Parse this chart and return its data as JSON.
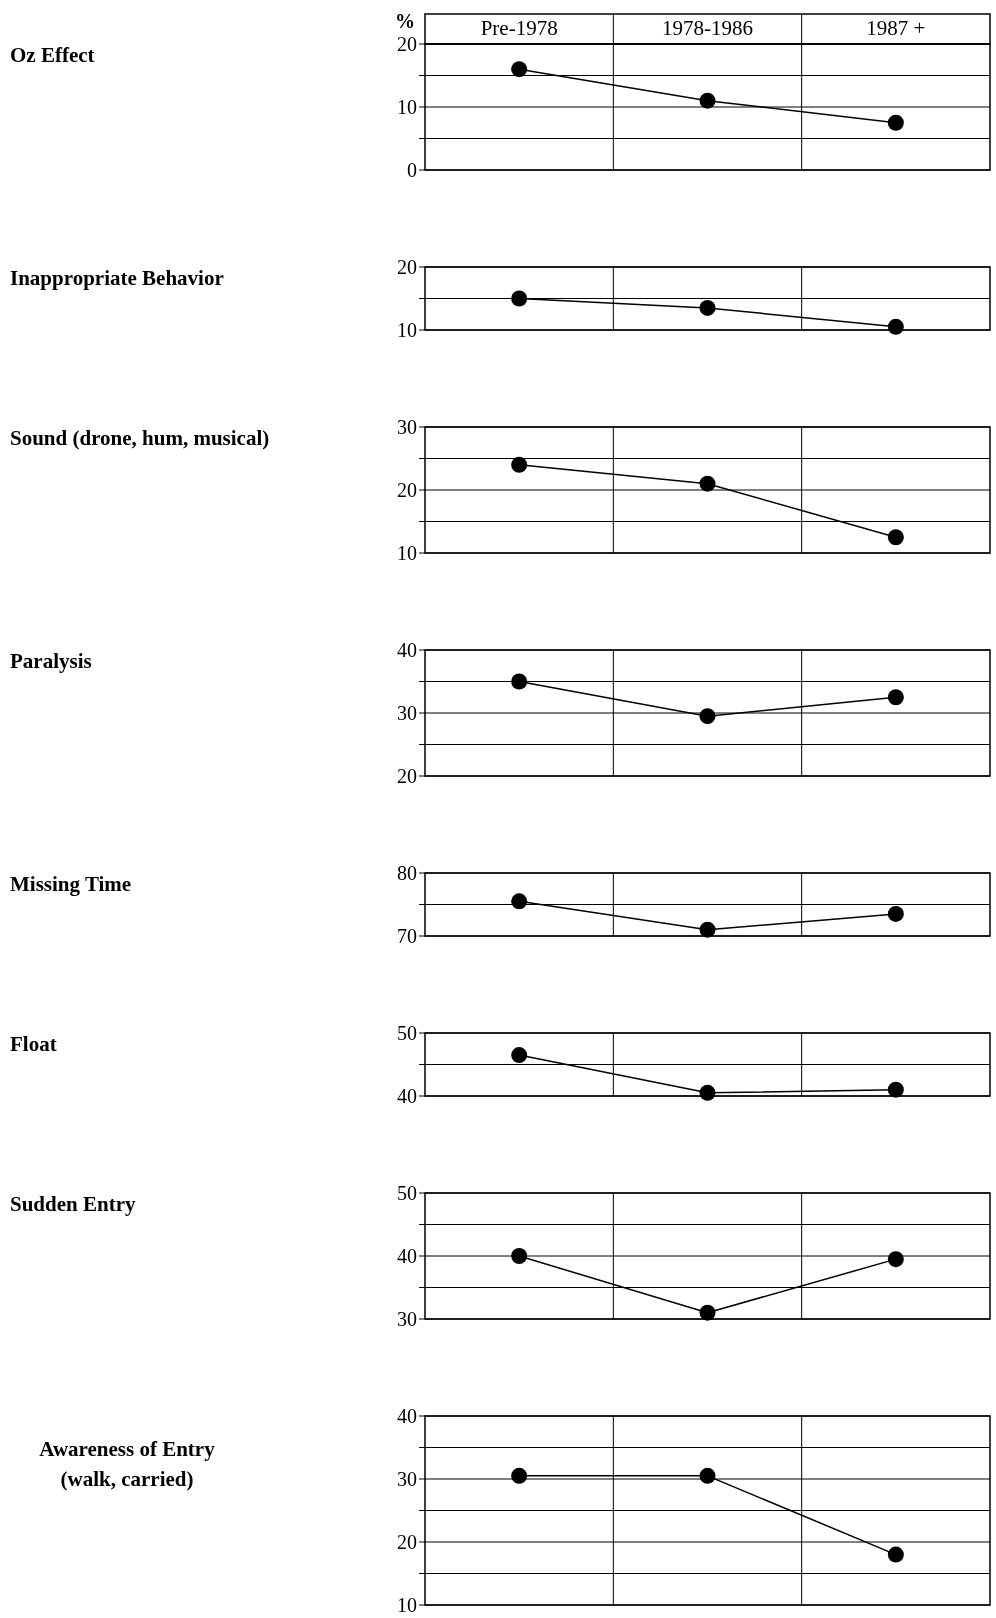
{
  "chart_data": [
    {
      "type": "line",
      "ylabel": "Oz Effect",
      "annotations": [
        "%"
      ],
      "categories": [
        "Pre-1978",
        "1978-1986",
        "1987 +"
      ],
      "values": [
        16,
        11,
        7.5
      ],
      "color": "#000000",
      "marker": "circle",
      "grid": true,
      "ylim": [
        0,
        20
      ],
      "yticks": [
        0,
        {
          "value": 5,
          "label": null
        },
        10,
        {
          "value": 15,
          "label": null
        },
        20
      ]
    },
    {
      "type": "line",
      "ylabel": "Inappropriate Behavior",
      "categories": [
        null,
        null,
        null
      ],
      "values": [
        15,
        13.5,
        10.5
      ],
      "color": "#000000",
      "marker": "circle",
      "grid": true,
      "ylim": [
        10,
        20
      ],
      "yticks": [
        10,
        {
          "value": 15,
          "label": null
        },
        20
      ]
    },
    {
      "type": "line",
      "ylabel": "Sound (drone, hum, musical)",
      "categories": [
        null,
        null,
        null
      ],
      "values": [
        24,
        21,
        12.5
      ],
      "color": "#000000",
      "marker": "circle",
      "grid": true,
      "ylim": [
        10,
        30
      ],
      "yticks": [
        10,
        {
          "value": 15,
          "label": null
        },
        20,
        {
          "value": 25,
          "label": null
        },
        30
      ]
    },
    {
      "type": "line",
      "ylabel": "Paralysis",
      "categories": [
        null,
        null,
        null
      ],
      "values": [
        35,
        29.5,
        32.5
      ],
      "color": "#000000",
      "marker": "circle",
      "grid": true,
      "ylim": [
        20,
        40
      ],
      "yticks": [
        20,
        {
          "value": 25,
          "label": null
        },
        30,
        {
          "value": 35,
          "label": null
        },
        40
      ]
    },
    {
      "type": "line",
      "ylabel": "Missing Time",
      "categories": [
        null,
        null,
        null
      ],
      "values": [
        75.5,
        71,
        73.5
      ],
      "color": "#000000",
      "marker": "circle",
      "grid": true,
      "ylim": [
        70,
        80
      ],
      "yticks": [
        70,
        {
          "value": 75,
          "label": null
        },
        80
      ]
    },
    {
      "type": "line",
      "ylabel": "Float",
      "categories": [
        null,
        null,
        null
      ],
      "values": [
        46.5,
        40.5,
        41
      ],
      "color": "#000000",
      "marker": "circle",
      "grid": true,
      "ylim": [
        40,
        50
      ],
      "yticks": [
        40,
        {
          "value": 45,
          "label": null
        },
        50
      ]
    },
    {
      "type": "line",
      "ylabel": "Sudden Entry",
      "categories": [
        null,
        null,
        null
      ],
      "values": [
        40,
        31,
        39.5
      ],
      "color": "#000000",
      "marker": "circle",
      "grid": true,
      "ylim": [
        30,
        50
      ],
      "yticks": [
        30,
        {
          "value": 35,
          "label": null
        },
        40,
        {
          "value": 45,
          "label": null
        },
        50
      ]
    },
    {
      "type": "line",
      "ylabel": "Awareness of Entry\n(walk, carried)",
      "categories": [
        null,
        null,
        null
      ],
      "values": [
        30.5,
        30.5,
        18
      ],
      "color": "#000000",
      "marker": "circle",
      "grid": true,
      "ylim": [
        10,
        40
      ],
      "yticks": [
        10,
        {
          "value": 15,
          "label": null
        },
        20,
        {
          "value": 25,
          "label": null
        },
        30,
        {
          "value": 35,
          "label": null
        },
        40
      ]
    }
  ]
}
